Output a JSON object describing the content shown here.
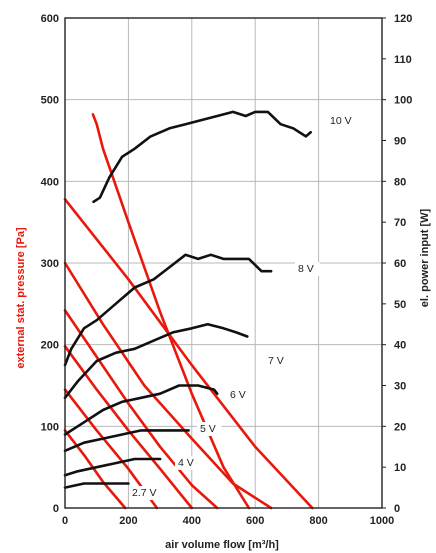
{
  "chart_data": {
    "type": "line",
    "xlabel": "air volume flow [m³/h]",
    "ylabel_left": "external stat. pressure [Pa]",
    "ylabel_right": "el. power input [W]",
    "xlim": [
      0,
      1000
    ],
    "ylim_left": [
      0,
      600
    ],
    "ylim_right": [
      0,
      120
    ],
    "x_ticks": [
      "0",
      "200",
      "400",
      "600",
      "800",
      "1000"
    ],
    "y_left_ticks": [
      "0",
      "100",
      "200",
      "300",
      "400",
      "500",
      "600"
    ],
    "y_right_ticks": [
      "0",
      "10",
      "20",
      "30",
      "40",
      "50",
      "60",
      "70",
      "80",
      "90",
      "100",
      "110",
      "120"
    ],
    "grid": true,
    "colors": {
      "pressure": "#e8180c",
      "power": "#111111",
      "label_left": "#e8180c",
      "grid": "#b8b8b8"
    },
    "pressure_series": [
      {
        "x": [
          88,
          100,
          120,
          200,
          300,
          400,
          500,
          580
        ],
        "y": [
          482,
          470,
          440,
          350,
          240,
          140,
          50,
          0
        ]
      },
      {
        "x": [
          0,
          200,
          400,
          600,
          780
        ],
        "y": [
          378,
          280,
          175,
          75,
          0
        ]
      },
      {
        "x": [
          0,
          120,
          250,
          400,
          530,
          650
        ],
        "y": [
          300,
          225,
          150,
          85,
          30,
          0
        ]
      },
      {
        "x": [
          0,
          100,
          200,
          300,
          400,
          480
        ],
        "y": [
          242,
          185,
          128,
          75,
          28,
          0
        ]
      },
      {
        "x": [
          0,
          100,
          200,
          300,
          400
        ],
        "y": [
          198,
          145,
          95,
          48,
          0
        ]
      },
      {
        "x": [
          0,
          100,
          200,
          290
        ],
        "y": [
          145,
          95,
          48,
          0
        ]
      },
      {
        "x": [
          0,
          60,
          120,
          190
        ],
        "y": [
          95,
          65,
          32,
          0
        ]
      }
    ],
    "series": [
      {
        "name": "10 V",
        "x": [
          90,
          110,
          140,
          180,
          220,
          270,
          330,
          380,
          430,
          480,
          530,
          570,
          600,
          640,
          680,
          720,
          760,
          775
        ],
        "y": [
          75,
          76,
          81,
          86,
          88,
          91,
          93,
          94,
          95,
          96,
          97,
          96,
          97,
          97,
          94,
          93,
          91,
          92
        ]
      },
      {
        "name": "8 V",
        "x": [
          0,
          20,
          60,
          100,
          160,
          220,
          280,
          330,
          380,
          420,
          460,
          500,
          540,
          580,
          620,
          650
        ],
        "y": [
          35,
          39,
          44,
          46,
          50,
          54,
          56,
          59,
          62,
          61,
          62,
          61,
          61,
          61,
          58,
          58
        ]
      },
      {
        "name": "7 V",
        "x": [
          0,
          40,
          100,
          160,
          220,
          280,
          340,
          400,
          450,
          500,
          540,
          575
        ],
        "y": [
          27,
          31,
          36,
          38,
          39,
          41,
          43,
          44,
          45,
          44,
          43,
          42
        ]
      },
      {
        "name": "6 V",
        "x": [
          0,
          60,
          120,
          180,
          240,
          300,
          360,
          420,
          470,
          480
        ],
        "y": [
          18,
          21,
          24,
          26,
          27,
          28,
          30,
          30,
          29,
          28
        ]
      },
      {
        "name": "5 V",
        "x": [
          0,
          60,
          120,
          180,
          240,
          300,
          360,
          390
        ],
        "y": [
          14,
          16,
          17,
          18,
          19,
          19,
          19,
          19
        ]
      },
      {
        "name": "4 V",
        "x": [
          0,
          40,
          100,
          160,
          220,
          260,
          300
        ],
        "y": [
          8,
          9,
          10,
          11,
          12,
          12,
          12
        ]
      },
      {
        "name": "2.7 V",
        "x": [
          0,
          60,
          120,
          180,
          200
        ],
        "y": [
          5,
          6,
          6,
          6,
          6
        ]
      }
    ],
    "series_labels": [
      "10 V",
      "8 V",
      "7 V",
      "6 V",
      "5 V",
      "4 V",
      "2.7 V"
    ]
  }
}
